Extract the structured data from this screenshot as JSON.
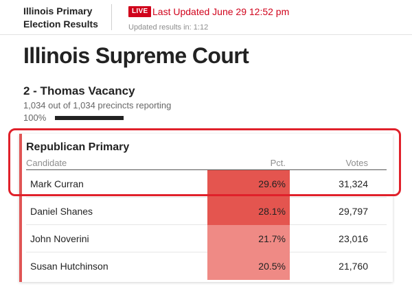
{
  "header": {
    "brand_line1": "Illinois Primary",
    "brand_line2": "Election Results",
    "live_label": "LIVE",
    "last_updated": "Last Updated June 29 12:52 pm",
    "refresh_text": "Updated results in: 1:12"
  },
  "page": {
    "title": "Illinois Supreme Court"
  },
  "race": {
    "title": "2 - Thomas Vacancy",
    "precincts": "1,034 out of 1,034 precincts reporting",
    "percent_reporting_label": "100%",
    "percent_reporting_value": 100
  },
  "results": {
    "title": "Republican Primary",
    "columns": {
      "candidate": "Candidate",
      "pct": "Pct.",
      "votes": "Votes"
    },
    "rows": [
      {
        "name": "Mark Curran",
        "pct": "29.6%",
        "votes": "31,324",
        "fill": "#e4554f"
      },
      {
        "name": "Daniel Shanes",
        "pct": "28.1%",
        "votes": "29,797",
        "fill": "#e4554f"
      },
      {
        "name": "John Noverini",
        "pct": "21.7%",
        "votes": "23,016",
        "fill": "#ef8a85"
      },
      {
        "name": "Susan Hutchinson",
        "pct": "20.5%",
        "votes": "21,760",
        "fill": "#ef8a85"
      }
    ]
  },
  "colors": {
    "live": "#d0021b",
    "card_accent": "#e05555",
    "annotation": "#e0202a"
  }
}
